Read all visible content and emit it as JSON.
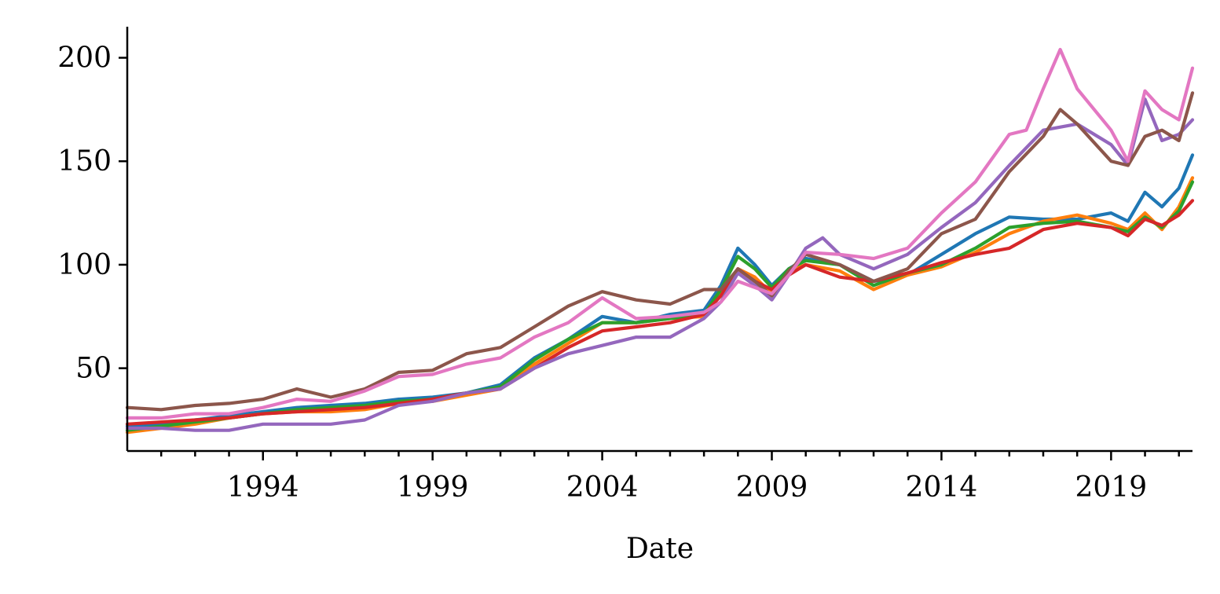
{
  "chart_data": {
    "type": "line",
    "title": "",
    "xlabel": "Date",
    "ylabel": "",
    "xlim": [
      1990.0,
      2021.4
    ],
    "ylim": [
      10,
      215
    ],
    "grid": false,
    "legend": "none",
    "x_ticks": [
      1994,
      1999,
      2004,
      2009,
      2014,
      2019
    ],
    "x_tick_labels": [
      "1994",
      "1999",
      "2004",
      "2009",
      "2014",
      "2019"
    ],
    "x_minor_ticks": [
      1991,
      1992,
      1993,
      1995,
      1996,
      1997,
      1998,
      2000,
      2001,
      2002,
      2003,
      2005,
      2006,
      2007,
      2008,
      2010,
      2011,
      2012,
      2013,
      2015,
      2016,
      2017,
      2018,
      2020,
      2021
    ],
    "y_ticks": [
      50,
      100,
      150,
      200
    ],
    "y_tick_labels": [
      "50",
      "100",
      "150",
      "200"
    ],
    "series": [
      {
        "color": "#1f77b4",
        "x": [
          1990.0,
          1991.0,
          1992.0,
          1993.0,
          1994.0,
          1995.0,
          1996.0,
          1997.0,
          1998.0,
          1999.0,
          2000.0,
          2001.0,
          2002.0,
          2003.0,
          2004.0,
          2005.0,
          2006.0,
          2007.0,
          2007.5,
          2008.0,
          2008.5,
          2009.0,
          2009.5,
          2010.0,
          2011.0,
          2012.0,
          2013.0,
          2014.0,
          2015.0,
          2016.0,
          2017.0,
          2018.0,
          2019.0,
          2019.5,
          2020.0,
          2020.5,
          2021.0,
          2021.4
        ],
        "y": [
          22,
          23,
          25,
          27,
          29,
          31,
          32,
          33,
          35,
          36,
          38,
          42,
          55,
          64,
          75,
          72,
          76,
          78,
          90,
          108,
          100,
          90,
          98,
          103,
          100,
          92,
          95,
          105,
          115,
          123,
          122,
          122,
          125,
          121,
          135,
          128,
          137,
          153
        ]
      },
      {
        "color": "#ff7f0e",
        "x": [
          1990.0,
          1991.0,
          1992.0,
          1993.0,
          1994.0,
          1995.0,
          1996.0,
          1997.0,
          1998.0,
          1999.0,
          2000.0,
          2001.0,
          2002.0,
          2003.0,
          2004.0,
          2005.0,
          2006.0,
          2007.0,
          2007.5,
          2008.0,
          2008.5,
          2009.0,
          2009.5,
          2010.0,
          2011.0,
          2012.0,
          2013.0,
          2014.0,
          2015.0,
          2016.0,
          2017.0,
          2018.0,
          2019.0,
          2019.5,
          2020.0,
          2020.5,
          2021.0,
          2021.4
        ],
        "y": [
          19,
          21,
          23,
          26,
          28,
          29,
          29,
          30,
          33,
          34,
          37,
          40,
          52,
          62,
          72,
          72,
          74,
          75,
          86,
          98,
          94,
          86,
          97,
          100,
          97,
          88,
          95,
          99,
          106,
          115,
          121,
          124,
          120,
          117,
          125,
          117,
          128,
          142
        ]
      },
      {
        "color": "#2ca02c",
        "x": [
          1990.0,
          1991.0,
          1992.0,
          1993.0,
          1994.0,
          1995.0,
          1996.0,
          1997.0,
          1998.0,
          1999.0,
          2000.0,
          2001.0,
          2002.0,
          2003.0,
          2004.0,
          2005.0,
          2006.0,
          2007.0,
          2007.5,
          2008.0,
          2008.5,
          2009.0,
          2009.5,
          2010.0,
          2011.0,
          2012.0,
          2013.0,
          2014.0,
          2015.0,
          2016.0,
          2017.0,
          2018.0,
          2019.0,
          2019.5,
          2020.0,
          2020.5,
          2021.0,
          2021.4
        ],
        "y": [
          20,
          22,
          24,
          26,
          28,
          30,
          31,
          32,
          34,
          35,
          38,
          41,
          54,
          64,
          72,
          72,
          74,
          76,
          88,
          104,
          98,
          89,
          98,
          102,
          100,
          90,
          96,
          100,
          108,
          118,
          120,
          121,
          118,
          116,
          123,
          118,
          126,
          140
        ]
      },
      {
        "color": "#d62728",
        "x": [
          1990.0,
          1991.0,
          1992.0,
          1993.0,
          1994.0,
          1995.0,
          1996.0,
          1997.0,
          1998.0,
          1999.0,
          2000.0,
          2001.0,
          2002.0,
          2003.0,
          2004.0,
          2005.0,
          2006.0,
          2007.0,
          2007.5,
          2008.0,
          2008.5,
          2009.0,
          2009.5,
          2010.0,
          2011.0,
          2012.0,
          2013.0,
          2014.0,
          2015.0,
          2016.0,
          2017.0,
          2018.0,
          2019.0,
          2019.5,
          2020.0,
          2020.5,
          2021.0,
          2021.4
        ],
        "y": [
          23,
          24,
          25,
          26,
          28,
          29,
          30,
          31,
          33,
          35,
          38,
          40,
          50,
          60,
          68,
          70,
          72,
          76,
          85,
          98,
          92,
          88,
          95,
          100,
          94,
          92,
          96,
          101,
          105,
          108,
          117,
          120,
          118,
          114,
          122,
          119,
          124,
          131
        ]
      },
      {
        "color": "#9467bd",
        "x": [
          1990.0,
          1991.0,
          1992.0,
          1993.0,
          1994.0,
          1995.0,
          1996.0,
          1997.0,
          1998.0,
          1999.0,
          2000.0,
          2001.0,
          2002.0,
          2003.0,
          2004.0,
          2005.0,
          2006.0,
          2007.0,
          2007.5,
          2008.0,
          2008.5,
          2009.0,
          2009.5,
          2010.0,
          2010.5,
          2011.0,
          2012.0,
          2013.0,
          2014.0,
          2015.0,
          2016.0,
          2017.0,
          2018.0,
          2019.0,
          2019.5,
          2020.0,
          2020.5,
          2021.0,
          2021.4
        ],
        "y": [
          21,
          21,
          20,
          20,
          23,
          23,
          23,
          25,
          32,
          34,
          38,
          40,
          50,
          57,
          61,
          65,
          65,
          74,
          82,
          96,
          90,
          83,
          95,
          108,
          113,
          105,
          98,
          105,
          118,
          130,
          148,
          165,
          168,
          158,
          148,
          180,
          160,
          163,
          170
        ]
      },
      {
        "color": "#8c564b",
        "x": [
          1990.0,
          1991.0,
          1992.0,
          1993.0,
          1994.0,
          1995.0,
          1996.0,
          1997.0,
          1998.0,
          1999.0,
          2000.0,
          2001.0,
          2002.0,
          2003.0,
          2004.0,
          2005.0,
          2006.0,
          2007.0,
          2007.5,
          2008.0,
          2008.5,
          2009.0,
          2009.5,
          2010.0,
          2011.0,
          2012.0,
          2013.0,
          2014.0,
          2015.0,
          2016.0,
          2017.0,
          2017.5,
          2018.0,
          2019.0,
          2019.5,
          2020.0,
          2020.5,
          2021.0,
          2021.4
        ],
        "y": [
          31,
          30,
          32,
          33,
          35,
          40,
          36,
          40,
          48,
          49,
          57,
          60,
          70,
          80,
          87,
          83,
          81,
          88,
          88,
          98,
          92,
          85,
          97,
          105,
          100,
          92,
          98,
          115,
          122,
          145,
          162,
          175,
          168,
          150,
          148,
          162,
          165,
          160,
          183
        ]
      },
      {
        "color": "#e377c2",
        "x": [
          1990.0,
          1991.0,
          1992.0,
          1993.0,
          1994.0,
          1995.0,
          1996.0,
          1997.0,
          1998.0,
          1999.0,
          2000.0,
          2001.0,
          2002.0,
          2003.0,
          2004.0,
          2005.0,
          2006.0,
          2007.0,
          2007.5,
          2008.0,
          2008.5,
          2009.0,
          2009.5,
          2010.0,
          2011.0,
          2012.0,
          2013.0,
          2014.0,
          2015.0,
          2016.0,
          2016.5,
          2017.0,
          2017.5,
          2018.0,
          2019.0,
          2019.5,
          2020.0,
          2020.5,
          2021.0,
          2021.4
        ],
        "y": [
          26,
          26,
          28,
          28,
          31,
          35,
          34,
          39,
          46,
          47,
          52,
          55,
          65,
          72,
          84,
          74,
          75,
          77,
          82,
          92,
          89,
          86,
          95,
          106,
          105,
          103,
          108,
          125,
          140,
          163,
          165,
          185,
          204,
          185,
          165,
          150,
          184,
          175,
          170,
          195
        ]
      }
    ]
  }
}
